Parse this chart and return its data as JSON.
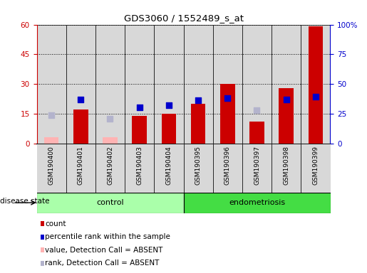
{
  "title": "GDS3060 / 1552489_s_at",
  "samples": [
    "GSM190400",
    "GSM190401",
    "GSM190402",
    "GSM190403",
    "GSM190404",
    "GSM190395",
    "GSM190396",
    "GSM190397",
    "GSM190398",
    "GSM190399"
  ],
  "groups": [
    "control",
    "control",
    "control",
    "control",
    "control",
    "endometriosis",
    "endometriosis",
    "endometriosis",
    "endometriosis",
    "endometriosis"
  ],
  "count_values": [
    null,
    17,
    null,
    14,
    15,
    20,
    30,
    11,
    28,
    59
  ],
  "count_absent": [
    3,
    null,
    3,
    null,
    null,
    null,
    null,
    null,
    null,
    null
  ],
  "percentile_values": [
    null,
    37,
    null,
    30,
    32,
    36,
    38,
    null,
    37,
    39
  ],
  "percentile_absent": [
    24,
    null,
    21,
    null,
    null,
    null,
    null,
    28,
    null,
    null
  ],
  "ylim_left": [
    0,
    60
  ],
  "ylim_right": [
    0,
    100
  ],
  "yticks_left": [
    0,
    15,
    30,
    45,
    60
  ],
  "yticks_right": [
    0,
    25,
    50,
    75,
    100
  ],
  "ytick_labels_left": [
    "0",
    "15",
    "30",
    "45",
    "60"
  ],
  "ytick_labels_right": [
    "0",
    "25",
    "50",
    "75",
    "100%"
  ],
  "bar_color": "#cc0000",
  "bar_absent_color": "#ffb3b3",
  "dot_color": "#0000cc",
  "dot_absent_color": "#b3b3cc",
  "group_colors": {
    "control": "#aaffaa",
    "endometriosis": "#44dd44"
  },
  "bar_width": 0.5,
  "dot_size": 35,
  "ylabel_left_color": "#cc0000",
  "ylabel_right_color": "#0000cc",
  "legend_items": [
    {
      "label": "count",
      "color": "#cc0000"
    },
    {
      "label": "percentile rank within the sample",
      "color": "#0000cc"
    },
    {
      "label": "value, Detection Call = ABSENT",
      "color": "#ffb3b3"
    },
    {
      "label": "rank, Detection Call = ABSENT",
      "color": "#b3b3cc"
    }
  ],
  "disease_state_label": "disease state",
  "group_label_control": "control",
  "group_label_endometriosis": "endometriosis",
  "col_bg_color": "#d8d8d8",
  "plot_bg_color": "#ffffff",
  "grid_color": "#000000"
}
